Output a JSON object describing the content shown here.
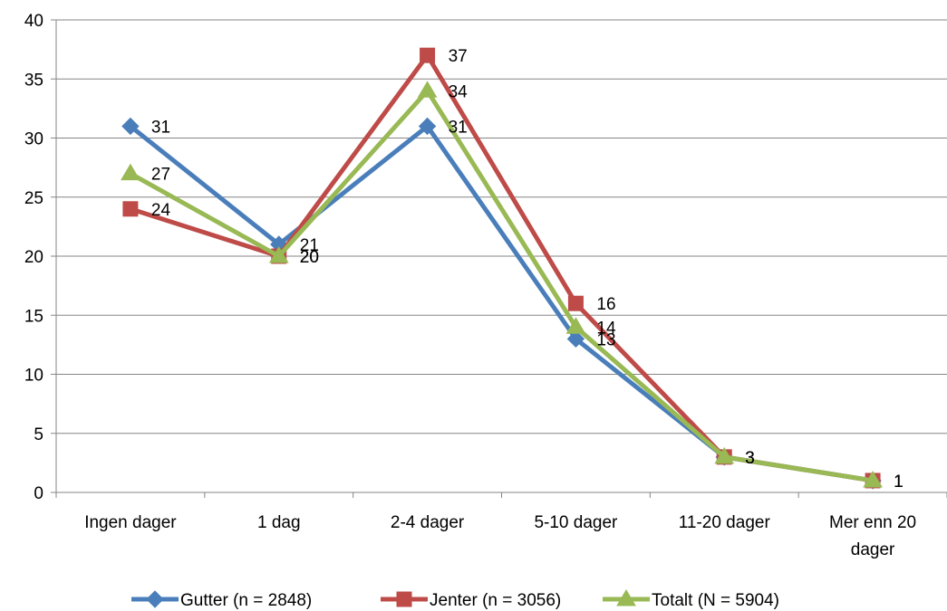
{
  "chart_data": {
    "type": "line",
    "title": "",
    "xlabel": "",
    "ylabel": "",
    "categories": [
      [
        "Ingen dager"
      ],
      [
        "1 dag"
      ],
      [
        "2-4 dager"
      ],
      [
        "5-10 dager"
      ],
      [
        "11-20 dager"
      ],
      [
        "Mer enn 20",
        "dager"
      ]
    ],
    "ylim": [
      0,
      40
    ],
    "yticks": [
      0,
      5,
      10,
      15,
      20,
      25,
      30,
      35,
      40
    ],
    "grid": true,
    "legend_position": "bottom",
    "series": [
      {
        "name": "Gutter (n = 2848)",
        "values": [
          31,
          21,
          31,
          13,
          3,
          1
        ],
        "color": "#4A7EBB",
        "marker": "diamond"
      },
      {
        "name": "Jenter (n = 3056)",
        "values": [
          24,
          20,
          37,
          16,
          3,
          1
        ],
        "color": "#BE4B48",
        "marker": "square"
      },
      {
        "name": "Totalt (N = 5904)",
        "values": [
          27,
          20,
          34,
          14,
          3,
          1
        ],
        "color": "#98B954",
        "marker": "triangle"
      }
    ]
  }
}
